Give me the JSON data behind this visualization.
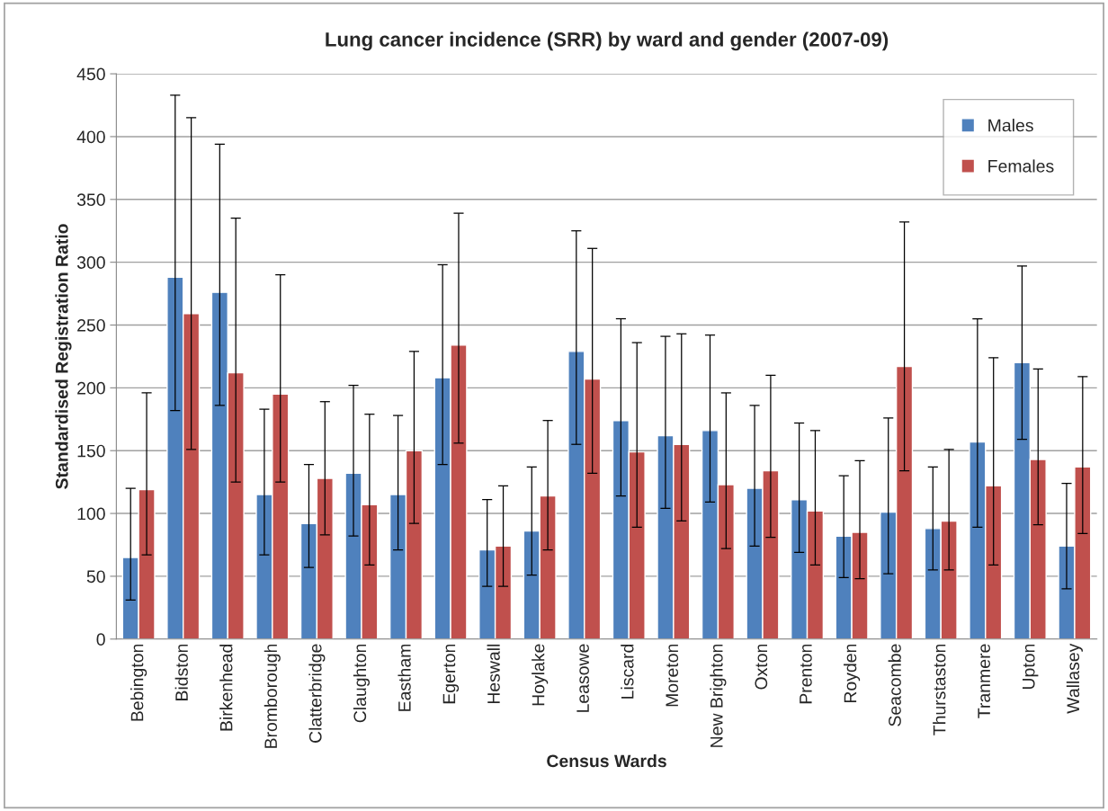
{
  "chart_data": {
    "type": "bar",
    "title": "Lung cancer incidence (SRR) by ward and gender (2007-09)",
    "xlabel": "Census Wards",
    "ylabel": "Standardised Registration Ratio",
    "categories": [
      "Bebington",
      "Bidston",
      "Birkenhead",
      "Bromborough",
      "Clatterbridge",
      "Claughton",
      "Eastham",
      "Egerton",
      "Heswall",
      "Hoylake",
      "Leasowe",
      "Liscard",
      "Moreton",
      "New Brighton",
      "Oxton",
      "Prenton",
      "Royden",
      "Seacombe",
      "Thurstaston",
      "Tranmere",
      "Upton",
      "Wallasey"
    ],
    "series": [
      {
        "name": "Males",
        "color": "#4f81bd",
        "values": [
          65,
          288,
          276,
          115,
          92,
          132,
          115,
          208,
          71,
          86,
          229,
          174,
          162,
          166,
          120,
          111,
          82,
          101,
          88,
          157,
          220,
          74
        ],
        "errors": [
          [
            31,
            120
          ],
          [
            182,
            433
          ],
          [
            186,
            394
          ],
          [
            67,
            183
          ],
          [
            57,
            139
          ],
          [
            82,
            202
          ],
          [
            71,
            178
          ],
          [
            139,
            298
          ],
          [
            42,
            111
          ],
          [
            51,
            137
          ],
          [
            155,
            325
          ],
          [
            114,
            255
          ],
          [
            104,
            241
          ],
          [
            109,
            242
          ],
          [
            74,
            186
          ],
          [
            69,
            172
          ],
          [
            49,
            130
          ],
          [
            52,
            176
          ],
          [
            55,
            137
          ],
          [
            89,
            255
          ],
          [
            159,
            297
          ],
          [
            40,
            124
          ]
        ]
      },
      {
        "name": "Females",
        "color": "#c0504d",
        "values": [
          119,
          259,
          212,
          195,
          128,
          107,
          150,
          234,
          74,
          114,
          207,
          149,
          155,
          123,
          134,
          102,
          85,
          217,
          94,
          122,
          143,
          137
        ],
        "errors": [
          [
            67,
            196
          ],
          [
            151,
            415
          ],
          [
            125,
            335
          ],
          [
            125,
            290
          ],
          [
            83,
            189
          ],
          [
            59,
            179
          ],
          [
            92,
            229
          ],
          [
            156,
            339
          ],
          [
            42,
            122
          ],
          [
            71,
            174
          ],
          [
            132,
            311
          ],
          [
            89,
            236
          ],
          [
            94,
            243
          ],
          [
            72,
            196
          ],
          [
            81,
            210
          ],
          [
            59,
            166
          ],
          [
            48,
            142
          ],
          [
            134,
            332
          ],
          [
            55,
            151
          ],
          [
            59,
            224
          ],
          [
            91,
            215
          ],
          [
            84,
            209
          ]
        ]
      }
    ],
    "ylim": [
      0,
      450
    ],
    "yticks": [
      0,
      50,
      100,
      150,
      200,
      250,
      300,
      350,
      400,
      450
    ],
    "grid": "y",
    "legend": "top right"
  }
}
